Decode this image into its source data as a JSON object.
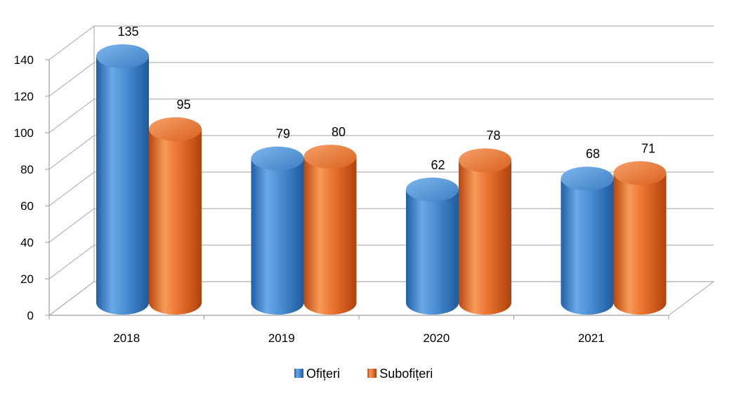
{
  "chart_data": {
    "type": "bar",
    "style": "3d-cylinder",
    "categories": [
      "2018",
      "2019",
      "2020",
      "2021"
    ],
    "series": [
      {
        "name": "Ofițeri",
        "values": [
          135,
          79,
          62,
          68
        ],
        "color": "#4a8fd4"
      },
      {
        "name": "Subofițeri",
        "values": [
          95,
          80,
          78,
          71
        ],
        "color": "#ea7330"
      }
    ],
    "ylim": [
      0,
      140
    ],
    "yticks": [
      0,
      20,
      40,
      60,
      80,
      100,
      120,
      140
    ],
    "grid": true,
    "legend_position": "bottom"
  }
}
